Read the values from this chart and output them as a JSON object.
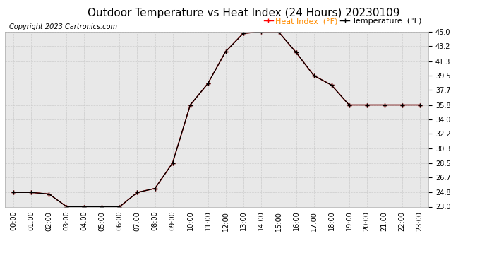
{
  "title": "Outdoor Temperature vs Heat Index (24 Hours) 20230109",
  "copyright": "Copyright 2023 Cartronics.com",
  "hours": [
    "00:00",
    "01:00",
    "02:00",
    "03:00",
    "04:00",
    "05:00",
    "06:00",
    "07:00",
    "08:00",
    "09:00",
    "10:00",
    "11:00",
    "12:00",
    "13:00",
    "14:00",
    "15:00",
    "16:00",
    "17:00",
    "18:00",
    "19:00",
    "20:00",
    "21:00",
    "22:00",
    "23:00"
  ],
  "heat_index": [
    24.8,
    24.8,
    24.6,
    23.0,
    23.0,
    23.0,
    23.0,
    24.8,
    25.3,
    28.5,
    35.8,
    38.5,
    42.5,
    44.8,
    45.0,
    45.0,
    42.4,
    39.5,
    38.3,
    35.8,
    35.8,
    35.8,
    35.8,
    35.8
  ],
  "temperature": [
    24.8,
    24.8,
    24.6,
    23.0,
    23.0,
    23.0,
    23.0,
    24.8,
    25.3,
    28.5,
    35.8,
    38.5,
    42.5,
    44.8,
    45.0,
    45.0,
    42.4,
    39.5,
    38.3,
    35.8,
    35.8,
    35.8,
    35.8,
    35.8
  ],
  "yticks": [
    23.0,
    24.8,
    26.7,
    28.5,
    30.3,
    32.2,
    34.0,
    35.8,
    37.7,
    39.5,
    41.3,
    43.2,
    45.0
  ],
  "ylim_min": 23.0,
  "ylim_max": 45.0,
  "heat_color": "#ff0000",
  "temp_color": "#000000",
  "legend_heat_color": "#ff8c00",
  "grid_color": "#cccccc",
  "plot_bg_color": "#e8e8e8",
  "background_color": "#ffffff",
  "title_fontsize": 11,
  "copyright_fontsize": 7,
  "legend_fontsize": 8,
  "tick_fontsize": 7
}
